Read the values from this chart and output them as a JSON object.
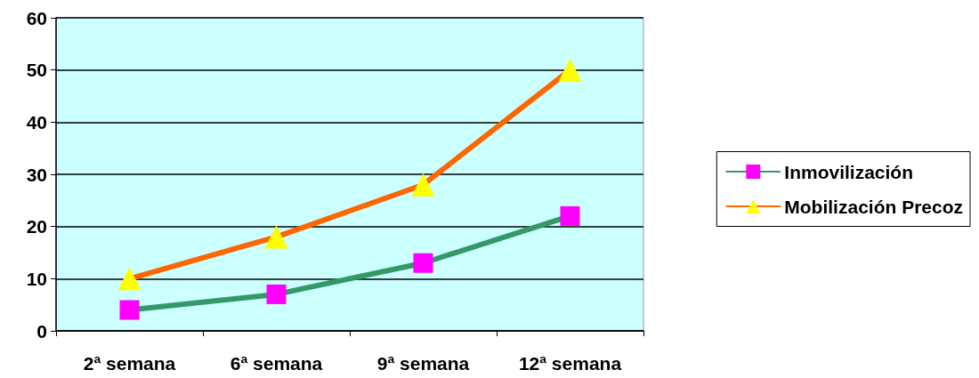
{
  "chart_data": {
    "type": "line",
    "categories": [
      "2ª semana",
      "6ª semana",
      "9ª semana",
      "12ª semana"
    ],
    "series": [
      {
        "name": "Inmovilización",
        "color": "#339966",
        "marker": "square",
        "colors": [
          "#ff00ff",
          "#ff00ff",
          "#ff00ff",
          "#ff00ff"
        ],
        "values": [
          4,
          7,
          13,
          22
        ]
      },
      {
        "name": "Mobilización Precoz",
        "color": "#ff6600",
        "marker": "triangle",
        "colors": [
          "#ffff00",
          "#ffff00",
          "#ffff00",
          "#ffff00"
        ],
        "values": [
          10,
          18,
          28,
          50
        ]
      }
    ],
    "ylim": [
      0,
      60
    ],
    "yticks": [
      0,
      10,
      20,
      30,
      40,
      50,
      60
    ],
    "grid": "y",
    "legend": "right",
    "line_style": "solid"
  }
}
